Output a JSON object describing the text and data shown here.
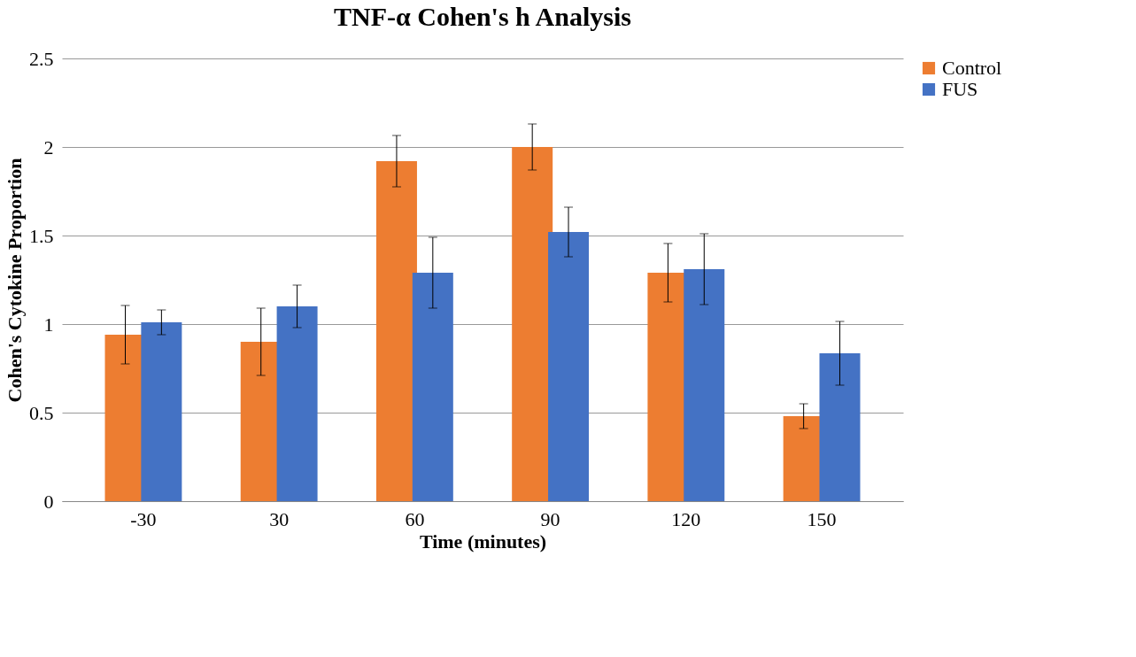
{
  "chart_data": {
    "type": "bar",
    "title": "TNF-α Cohen's h Analysis",
    "xlabel": "Time (minutes)",
    "ylabel": "Cohen's Cytokine Proportion",
    "categories": [
      "-30",
      "30",
      "60",
      "90",
      "120",
      "150"
    ],
    "series": [
      {
        "name": "Control",
        "color": "#ed7d31",
        "values": [
          0.94,
          0.9,
          1.92,
          2.0,
          1.29,
          0.48
        ],
        "errors": [
          0.165,
          0.19,
          0.145,
          0.13,
          0.165,
          0.07
        ]
      },
      {
        "name": "FUS",
        "color": "#4472c4",
        "values": [
          1.01,
          1.1,
          1.29,
          1.52,
          1.31,
          0.835
        ],
        "errors": [
          0.07,
          0.12,
          0.2,
          0.14,
          0.2,
          0.18
        ]
      }
    ],
    "ylim": [
      0,
      2.5
    ],
    "yticks": [
      0,
      0.5,
      1,
      1.5,
      2,
      2.5
    ],
    "grid": "y",
    "legend": "right"
  }
}
